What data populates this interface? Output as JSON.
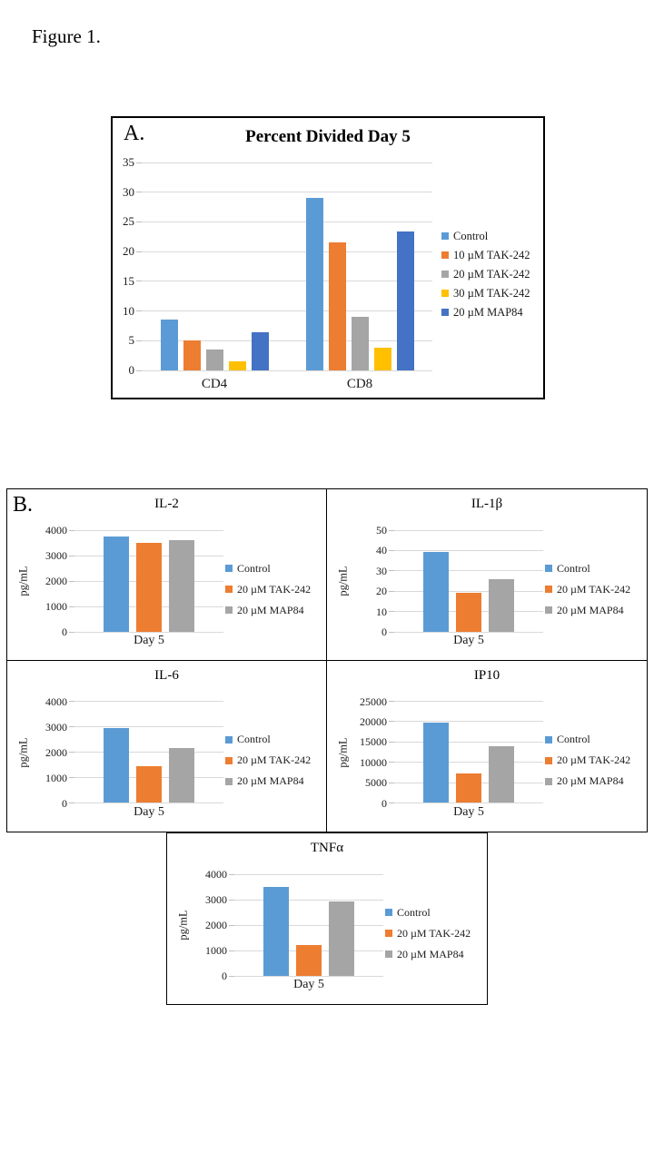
{
  "figure_label": "Figure 1.",
  "panels": {
    "a_label": "A.",
    "b_label": "B."
  },
  "colors": {
    "control_blue": "#5B9BD5",
    "tak_orange": "#ED7D31",
    "gray": "#A5A5A5",
    "yellow": "#FFC000",
    "map84_blue": "#4472C4",
    "gridline": "#D9D9D9",
    "tick_stub": "#BFBFBF",
    "text": "#1A1A1A"
  },
  "chart_data": [
    {
      "id": "percent-divided-day5",
      "type": "bar",
      "title": "Percent Divided Day 5",
      "categories": [
        "CD4",
        "CD8"
      ],
      "series": [
        {
          "name": "Control",
          "color": "#5B9BD5",
          "values": [
            8.5,
            29
          ]
        },
        {
          "name": "10 µM TAK-242",
          "color": "#ED7D31",
          "values": [
            5,
            21.5
          ]
        },
        {
          "name": "20 µM TAK-242",
          "color": "#A5A5A5",
          "values": [
            3.5,
            9
          ]
        },
        {
          "name": "30 µM TAK-242",
          "color": "#FFC000",
          "values": [
            1.6,
            3.8
          ]
        },
        {
          "name": "20 µM MAP84",
          "color": "#4472C4",
          "values": [
            6.4,
            23.4
          ]
        }
      ],
      "xlabel": "",
      "ylabel": "",
      "ylim": [
        0,
        35
      ],
      "ytick_step": 5,
      "grid": true,
      "legend_position": "right"
    },
    {
      "id": "il-2",
      "type": "bar",
      "title": "IL-2",
      "categories": [
        "Day 5"
      ],
      "series": [
        {
          "name": "Control",
          "color": "#5B9BD5",
          "values": [
            3750
          ]
        },
        {
          "name": "20 µM TAK-242",
          "color": "#ED7D31",
          "values": [
            3500
          ]
        },
        {
          "name": "20 µM MAP84",
          "color": "#A5A5A5",
          "values": [
            3600
          ]
        }
      ],
      "xlabel": "",
      "ylabel": "pg/mL",
      "ylim": [
        0,
        4000
      ],
      "ytick_step": 1000,
      "grid": true,
      "legend_position": "right"
    },
    {
      "id": "il-1b",
      "type": "bar",
      "title": "IL-1β",
      "categories": [
        "Day 5"
      ],
      "series": [
        {
          "name": "Control",
          "color": "#5B9BD5",
          "values": [
            39.5
          ]
        },
        {
          "name": "20 µM TAK-242",
          "color": "#ED7D31",
          "values": [
            19
          ]
        },
        {
          "name": "20 µM MAP84",
          "color": "#A5A5A5",
          "values": [
            26
          ]
        }
      ],
      "xlabel": "",
      "ylabel": "pg/mL",
      "ylim": [
        0,
        50
      ],
      "ytick_step": 10,
      "grid": true,
      "legend_position": "right"
    },
    {
      "id": "il-6",
      "type": "bar",
      "title": "IL-6",
      "categories": [
        "Day 5"
      ],
      "series": [
        {
          "name": "Control",
          "color": "#5B9BD5",
          "values": [
            2950
          ]
        },
        {
          "name": "20 µM TAK-242",
          "color": "#ED7D31",
          "values": [
            1450
          ]
        },
        {
          "name": "20 µM MAP84",
          "color": "#A5A5A5",
          "values": [
            2150
          ]
        }
      ],
      "xlabel": "",
      "ylabel": "pg/mL",
      "ylim": [
        0,
        4000
      ],
      "ytick_step": 1000,
      "grid": true,
      "legend_position": "right"
    },
    {
      "id": "ip10",
      "type": "bar",
      "title": "IP10",
      "categories": [
        "Day 5"
      ],
      "series": [
        {
          "name": "Control",
          "color": "#5B9BD5",
          "values": [
            19800
          ]
        },
        {
          "name": "20 µM TAK-242",
          "color": "#ED7D31",
          "values": [
            7200
          ]
        },
        {
          "name": "20 µM MAP84",
          "color": "#A5A5A5",
          "values": [
            13900
          ]
        }
      ],
      "xlabel": "",
      "ylabel": "pg/mL",
      "ylim": [
        0,
        25000
      ],
      "ytick_step": 5000,
      "grid": true,
      "legend_position": "right"
    },
    {
      "id": "tnfa",
      "type": "bar",
      "title": "TNFα",
      "categories": [
        "Day 5"
      ],
      "series": [
        {
          "name": "Control",
          "color": "#5B9BD5",
          "values": [
            3500
          ]
        },
        {
          "name": "20 µM TAK-242",
          "color": "#ED7D31",
          "values": [
            1225
          ]
        },
        {
          "name": "20 µM MAP84",
          "color": "#A5A5A5",
          "values": [
            2925
          ]
        }
      ],
      "xlabel": "",
      "ylabel": "pg/mL",
      "ylim": [
        0,
        4000
      ],
      "ytick_step": 1000,
      "grid": true,
      "legend_position": "right"
    }
  ]
}
